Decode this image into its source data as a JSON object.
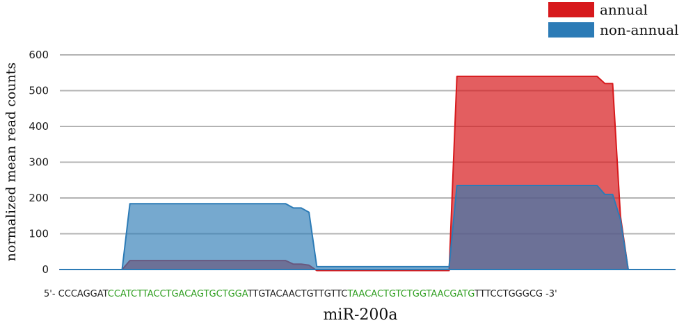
{
  "chart_data": {
    "type": "area",
    "title": "",
    "xlabel": "miR-200a",
    "ylabel": "normalized mean read counts",
    "ylim": [
      0,
      600
    ],
    "yticks": [
      0,
      100,
      200,
      300,
      400,
      500,
      600
    ],
    "grid": true,
    "legend_position": "top-right",
    "sequence": {
      "prefix": "5'- ",
      "suffix": " -3'",
      "segments": [
        {
          "text": "CCCAGGAT",
          "mature": false
        },
        {
          "text": "CCATCTTACCTGACAGTGCTGGA",
          "mature": true
        },
        {
          "text": "TTGTACAACTGTTGTTC",
          "mature": false
        },
        {
          "text": "TAACACTGTCTGGTAACGATG",
          "mature": true
        },
        {
          "text": "TTTCCTGGGCG",
          "mature": false
        }
      ]
    },
    "x": [
      1,
      2,
      3,
      4,
      5,
      6,
      7,
      8,
      9,
      10,
      11,
      12,
      13,
      14,
      15,
      16,
      17,
      18,
      19,
      20,
      21,
      22,
      23,
      24,
      25,
      26,
      27,
      28,
      29,
      30,
      31,
      32,
      33,
      34,
      35,
      36,
      37,
      38,
      39,
      40,
      41,
      42,
      43,
      44,
      45,
      46,
      47,
      48,
      49,
      50,
      51,
      52,
      53,
      54,
      55,
      56,
      57,
      58,
      59,
      60,
      61,
      62,
      63,
      64,
      65,
      66,
      67,
      68,
      69,
      70,
      71,
      72,
      73,
      74,
      75,
      76,
      77,
      78,
      79,
      80
    ],
    "series": [
      {
        "name": "annual",
        "color": "#d7191c",
        "values": [
          0,
          0,
          0,
          0,
          0,
          0,
          0,
          0,
          0,
          25,
          25,
          25,
          25,
          25,
          25,
          25,
          25,
          25,
          25,
          25,
          25,
          25,
          25,
          25,
          25,
          25,
          25,
          25,
          25,
          25,
          15,
          15,
          12,
          -3,
          -3,
          -3,
          -3,
          -3,
          -3,
          -3,
          -3,
          -3,
          -3,
          -3,
          -3,
          -3,
          -3,
          -3,
          -3,
          -3,
          -3,
          540,
          540,
          540,
          540,
          540,
          540,
          540,
          540,
          540,
          540,
          540,
          540,
          540,
          540,
          540,
          540,
          540,
          540,
          540,
          520,
          520,
          150,
          0,
          0,
          0,
          0,
          0,
          0,
          0
        ]
      },
      {
        "name": "non-annual",
        "color": "#2c7bb6",
        "values": [
          0,
          0,
          0,
          0,
          0,
          0,
          0,
          0,
          0,
          184,
          184,
          184,
          184,
          184,
          184,
          184,
          184,
          184,
          184,
          184,
          184,
          184,
          184,
          184,
          184,
          184,
          184,
          184,
          184,
          184,
          172,
          172,
          160,
          8,
          8,
          8,
          8,
          8,
          8,
          8,
          8,
          8,
          8,
          8,
          8,
          8,
          8,
          8,
          8,
          8,
          8,
          235,
          235,
          235,
          235,
          235,
          235,
          235,
          235,
          235,
          235,
          235,
          235,
          235,
          235,
          235,
          235,
          235,
          235,
          235,
          210,
          210,
          140,
          0,
          0,
          0,
          0,
          0,
          0,
          0
        ]
      }
    ]
  }
}
